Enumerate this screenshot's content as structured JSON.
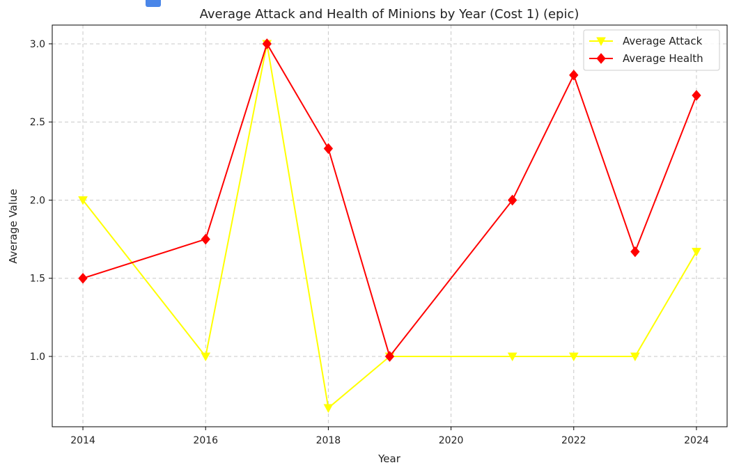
{
  "chart_data": {
    "type": "line",
    "title": "Average Attack and Health of Minions by Year (Cost 1) (epic)",
    "xlabel": "Year",
    "ylabel": "Average Value",
    "xlim": [
      2013.5,
      2024.5
    ],
    "ylim": [
      0.55,
      3.12
    ],
    "x_ticks": [
      2014,
      2016,
      2018,
      2020,
      2022,
      2024
    ],
    "y_ticks": [
      1.0,
      1.5,
      2.0,
      2.5,
      3.0
    ],
    "y_tick_labels": [
      "1.0",
      "1.5",
      "2.0",
      "2.5",
      "3.0"
    ],
    "grid": true,
    "legend_position": "top-right",
    "series": [
      {
        "name": "Average Attack",
        "color": "#ffff00",
        "marker": "triangle-down",
        "x": [
          2014,
          2016,
          2017,
          2018,
          2019,
          2021,
          2022,
          2023,
          2024
        ],
        "y": [
          2.0,
          1.0,
          3.0,
          0.67,
          1.0,
          1.0,
          1.0,
          1.0,
          1.67
        ]
      },
      {
        "name": "Average Health",
        "color": "#ff0000",
        "marker": "diamond",
        "x": [
          2014,
          2016,
          2017,
          2018,
          2019,
          2021,
          2022,
          2023,
          2024
        ],
        "y": [
          1.5,
          1.75,
          3.0,
          2.33,
          1.0,
          2.0,
          2.8,
          1.67,
          2.67
        ]
      }
    ]
  },
  "icons": {
    "title_icon": "python-icon"
  }
}
